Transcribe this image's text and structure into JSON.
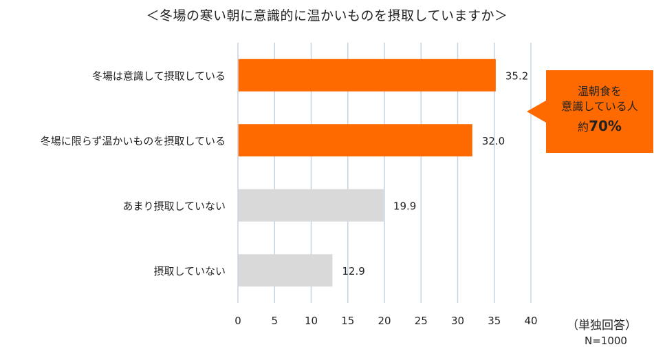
{
  "chart_data": {
    "type": "bar",
    "orientation": "horizontal",
    "title": "＜冬場の寒い朝に意識的に温かいものを摂取していますか＞",
    "categories": [
      "冬場は意識して摂取している",
      "冬場に限らず温かいものを摂取している",
      "あまり摂取していない",
      "摂取していない"
    ],
    "values": [
      35.2,
      32.0,
      19.9,
      12.9
    ],
    "value_labels": [
      "35.2",
      "32.0",
      "19.9",
      "12.9"
    ],
    "bar_colors": [
      "#ff6a00",
      "#ff6a00",
      "#d9d9d9",
      "#d9d9d9"
    ],
    "xlim": [
      0,
      40
    ],
    "xticks": [
      "0",
      "5",
      "10",
      "15",
      "20",
      "25",
      "30",
      "35",
      "40"
    ],
    "grid": "vertical",
    "grid_color": "#c5d3e6"
  },
  "callout": {
    "line1": "温朝食を",
    "line2": "意識している人",
    "prefix": "約",
    "value": "70%",
    "color": "#ff6a00"
  },
  "notes": {
    "unit": "（単独回答）",
    "n": "N=1000"
  }
}
